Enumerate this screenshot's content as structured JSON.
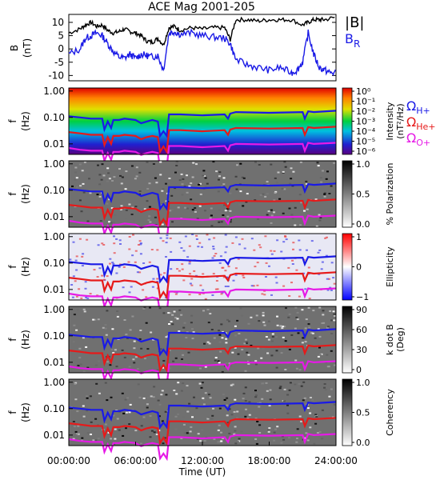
{
  "chart_data": {
    "type": "heatmap",
    "title": "ACE Mag 2001-205",
    "xlabel": "Time (UT)",
    "x_ticks": [
      "00:00:00",
      "06:00:00",
      "12:00:00",
      "18:00:00",
      "24:00:00"
    ],
    "x_range_hours": [
      0,
      24
    ],
    "top_panel": {
      "type": "line",
      "ylabel_line1": "B",
      "ylabel_line2": "(nT)",
      "y_ticks": [
        10,
        5,
        0,
        -5,
        -10
      ],
      "ylim": [
        -12,
        13
      ],
      "series": [
        {
          "name": "|B|",
          "color": "#000000",
          "x": [
            0,
            1,
            1.5,
            2,
            2.5,
            3,
            3.5,
            4,
            4.5,
            5,
            5.5,
            6,
            6.5,
            7,
            7.5,
            8,
            8.5,
            9,
            9.5,
            10,
            11,
            12,
            13,
            14,
            14.5,
            15,
            16,
            17,
            18,
            19,
            20,
            21,
            21.5,
            22,
            22.5,
            23,
            24
          ],
          "y": [
            6,
            7.5,
            9,
            10,
            8.5,
            9,
            7,
            6,
            6.5,
            7.5,
            6.5,
            6,
            5,
            3,
            2.5,
            4,
            1.5,
            8,
            8.5,
            7,
            8,
            7.5,
            8,
            8,
            3.5,
            11,
            11,
            10.5,
            11,
            11,
            11,
            9,
            10,
            11,
            11,
            11,
            12
          ]
        },
        {
          "name": "B",
          "subscript": "R",
          "color": "#1a1ae6",
          "x": [
            0,
            1,
            1.5,
            2,
            2.5,
            3,
            3.5,
            4,
            4.5,
            5,
            5.5,
            6,
            6.5,
            7,
            7.5,
            8,
            8.5,
            9,
            9.5,
            10,
            11,
            12,
            13,
            14,
            14.5,
            15,
            16,
            17,
            18,
            19,
            20,
            20.5,
            21,
            21.5,
            22,
            22.5,
            23,
            23.5,
            24
          ],
          "y": [
            -2,
            0,
            4,
            5,
            6,
            5,
            2,
            -1,
            -3,
            -3.5,
            -2,
            -3.5,
            -2,
            -2.5,
            -3,
            -2.5,
            -8,
            6,
            6.5,
            5.5,
            6,
            5,
            4.5,
            4,
            2,
            -4,
            -6,
            -7,
            -8,
            -7,
            -9,
            -8,
            -5,
            6,
            -2,
            -7,
            -8,
            -9,
            -9
          ]
        }
      ]
    },
    "spectrogram_panels": [
      {
        "ylabel_line1": "f",
        "ylabel_line2": "(Hz)",
        "y_ticks": [
          "1.00",
          "0.10",
          "0.01"
        ],
        "colorbar_title": "Intensity",
        "colorbar_units": "(nT²/Hz)",
        "colorbar_ticks": [
          "10⁰",
          "10⁻¹",
          "10⁻²",
          "10⁻³",
          "10⁻⁴",
          "10⁻⁵",
          "10⁻⁶"
        ],
        "colormap": "rainbow"
      },
      {
        "ylabel_line1": "f",
        "ylabel_line2": "(Hz)",
        "y_ticks": [
          "1.00",
          "0.10",
          "0.01"
        ],
        "colorbar_title": "% Polarization",
        "colorbar_units": "",
        "colorbar_ticks": [
          "1.0",
          "0.5",
          "0.0"
        ],
        "colormap": "gray"
      },
      {
        "ylabel_line1": "f",
        "ylabel_line2": "(Hz)",
        "y_ticks": [
          "1.00",
          "0.10",
          "0.01"
        ],
        "colorbar_title": "Ellipticity",
        "colorbar_units": "",
        "colorbar_ticks": [
          "1",
          "0",
          "−1"
        ],
        "colormap": "red-white-blue"
      },
      {
        "ylabel_line1": "f",
        "ylabel_line2": "(Hz)",
        "y_ticks": [
          "1.00",
          "0.10",
          "0.01"
        ],
        "colorbar_title": "k dot B",
        "colorbar_units": "(Deg)",
        "colorbar_ticks": [
          "90",
          "60",
          "30",
          "0"
        ],
        "colormap": "gray"
      },
      {
        "ylabel_line1": "f",
        "ylabel_line2": "(Hz)",
        "y_ticks": [
          "1.00",
          "0.10",
          "0.01"
        ],
        "colorbar_title": "Coherency",
        "colorbar_units": "",
        "colorbar_ticks": [
          "1.0",
          "0.5",
          "0.0"
        ],
        "colormap": "gray"
      }
    ],
    "gyrofrequency_legend": [
      {
        "symbol": "Ω",
        "sub": "H+",
        "color": "#1a1ae6"
      },
      {
        "symbol": "Ω",
        "sub": "He+",
        "color": "#e61a1a"
      },
      {
        "symbol": "Ω",
        "sub": "O+",
        "color": "#e61ae6"
      }
    ],
    "gyrofrequency_lines": {
      "x": [
        0,
        1,
        2,
        3,
        3.2,
        3.5,
        3.8,
        4,
        4.5,
        5,
        6,
        6.5,
        7,
        7.5,
        8,
        8.2,
        8.5,
        8.8,
        9,
        9.5,
        10,
        12,
        14,
        14.3,
        14.5,
        15,
        18,
        21,
        21.2,
        21.5,
        22,
        24
      ],
      "H+": [
        0.11,
        0.1,
        0.09,
        0.09,
        0.035,
        0.07,
        0.04,
        0.08,
        0.08,
        0.09,
        0.08,
        0.06,
        0.07,
        0.08,
        0.07,
        0.02,
        0.03,
        0.02,
        0.13,
        0.13,
        0.13,
        0.12,
        0.13,
        0.09,
        0.14,
        0.16,
        0.15,
        0.16,
        0.09,
        0.17,
        0.16,
        0.18
      ],
      "He+": [
        0.028,
        0.025,
        0.022,
        0.022,
        0.009,
        0.018,
        0.01,
        0.02,
        0.02,
        0.022,
        0.02,
        0.015,
        0.018,
        0.02,
        0.018,
        0.005,
        0.008,
        0.005,
        0.033,
        0.033,
        0.033,
        0.03,
        0.033,
        0.022,
        0.035,
        0.04,
        0.038,
        0.04,
        0.022,
        0.043,
        0.04,
        0.045
      ],
      "O+": [
        0.007,
        0.006,
        0.0055,
        0.0055,
        0.0023,
        0.0045,
        0.0025,
        0.005,
        0.005,
        0.0055,
        0.005,
        0.0038,
        0.0045,
        0.005,
        0.0045,
        0.0013,
        0.002,
        0.0013,
        0.0083,
        0.0083,
        0.0083,
        0.0075,
        0.0083,
        0.0055,
        0.0088,
        0.01,
        0.0095,
        0.01,
        0.0055,
        0.011,
        0.01,
        0.011
      ]
    },
    "legend": {
      "B_total": "|B|",
      "B_R_main": "B",
      "B_R_sub": "R"
    }
  }
}
